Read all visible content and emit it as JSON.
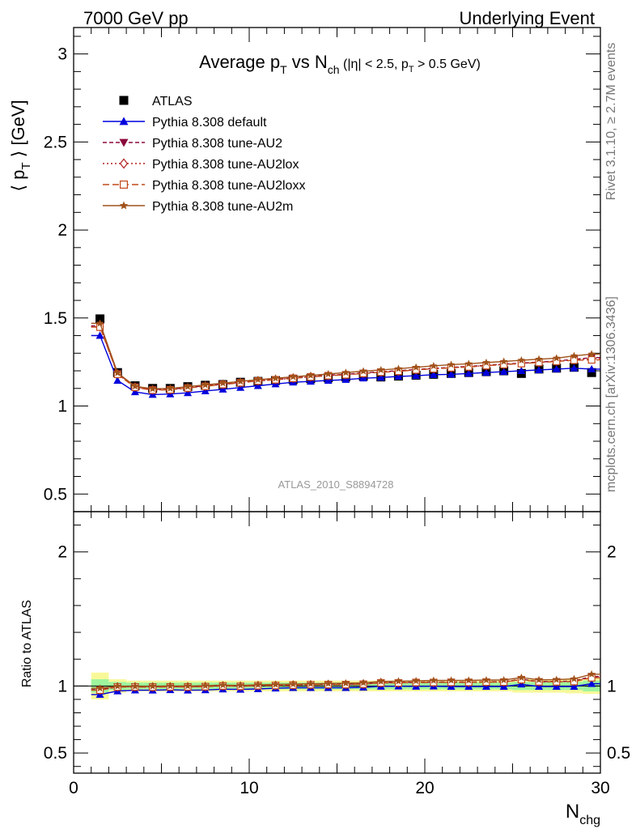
{
  "header": {
    "left": "7000 GeV pp",
    "right": "Underlying Event"
  },
  "side_labels": {
    "rivet": "Rivet 3.1.10, ≥ 2.7M events",
    "mcplots": "mcplots.cern.ch [arXiv:1306.3436]"
  },
  "watermark": "ATLAS_2010_S8894728",
  "colors": {
    "ATLAS": "#000000",
    "default": "#0000dd",
    "AU2": "#8b0a3c",
    "AU2lox": "#b22222",
    "AU2loxx": "#c24a1a",
    "AU2m": "#a0521a",
    "band_inner": "#9ef59e",
    "band_outer": "#f8f89a"
  },
  "chart_data": [
    {
      "type": "line",
      "title": {
        "main": "Average p",
        "main_sub": "T",
        "mid": " vs N",
        "mid_sub": "ch",
        "cond": " (|η| < 2.5, p",
        "cond_sub": "T",
        "cond_end": " > 0.5 GeV)"
      },
      "xlabel": "",
      "ylabel": {
        "pre": "⟨ p",
        "sub": "T",
        "post": " ⟩ [GeV]"
      },
      "xlim": [
        0,
        30
      ],
      "ylim": [
        0.4,
        3.15
      ],
      "yticks": [
        "0.5",
        "1",
        "1.5",
        "2",
        "2.5",
        "3"
      ],
      "yticks_val": [
        0.5,
        1,
        1.5,
        2,
        2.5,
        3
      ],
      "legend_position": "top-left",
      "x": [
        1.5,
        2.5,
        3.5,
        4.5,
        5.5,
        6.5,
        7.5,
        8.5,
        9.5,
        10.5,
        11.5,
        12.5,
        13.5,
        14.5,
        15.5,
        16.5,
        17.5,
        18.5,
        19.5,
        20.5,
        21.5,
        22.5,
        23.5,
        24.5,
        25.5,
        26.5,
        27.5,
        28.5,
        29.5
      ],
      "series": [
        {
          "name": "ATLAS",
          "key": "ATLAS",
          "marker": "square",
          "values": [
            1.495,
            1.19,
            1.115,
            1.1,
            1.1,
            1.11,
            1.118,
            1.122,
            1.135,
            1.14,
            1.145,
            1.15,
            1.155,
            1.16,
            1.165,
            1.17,
            1.165,
            1.17,
            1.175,
            1.18,
            1.185,
            1.19,
            1.195,
            1.2,
            1.185,
            1.21,
            1.215,
            1.22,
            1.19
          ]
        },
        {
          "name": "Pythia 8.308 default",
          "key": "default",
          "marker": "triangle-up",
          "dash": "",
          "values": [
            1.4,
            1.145,
            1.08,
            1.065,
            1.068,
            1.075,
            1.085,
            1.095,
            1.105,
            1.115,
            1.125,
            1.135,
            1.14,
            1.145,
            1.15,
            1.158,
            1.162,
            1.168,
            1.172,
            1.178,
            1.18,
            1.185,
            1.19,
            1.195,
            1.2,
            1.205,
            1.21,
            1.215,
            1.21
          ]
        },
        {
          "name": "Pythia 8.308 tune-AU2",
          "key": "AU2",
          "marker": "triangle-down",
          "dash": "5,3",
          "values": [
            1.455,
            1.185,
            1.11,
            1.095,
            1.095,
            1.105,
            1.115,
            1.125,
            1.135,
            1.145,
            1.152,
            1.16,
            1.168,
            1.175,
            1.18,
            1.188,
            1.195,
            1.2,
            1.208,
            1.214,
            1.22,
            1.225,
            1.232,
            1.238,
            1.244,
            1.25,
            1.256,
            1.265,
            1.275
          ]
        },
        {
          "name": "Pythia 8.308 tune-AU2lox",
          "key": "AU2lox",
          "marker": "diamond-open",
          "dash": "2,3",
          "values": [
            1.45,
            1.182,
            1.108,
            1.092,
            1.093,
            1.103,
            1.113,
            1.123,
            1.133,
            1.143,
            1.15,
            1.158,
            1.166,
            1.173,
            1.178,
            1.186,
            1.193,
            1.198,
            1.206,
            1.212,
            1.218,
            1.223,
            1.23,
            1.236,
            1.242,
            1.248,
            1.254,
            1.262,
            1.268
          ]
        },
        {
          "name": "Pythia 8.308 tune-AU2loxx",
          "key": "AU2loxx",
          "marker": "square-open",
          "dash": "8,4",
          "values": [
            1.448,
            1.18,
            1.106,
            1.09,
            1.092,
            1.102,
            1.112,
            1.122,
            1.132,
            1.142,
            1.149,
            1.157,
            1.165,
            1.172,
            1.177,
            1.185,
            1.192,
            1.197,
            1.205,
            1.211,
            1.217,
            1.222,
            1.229,
            1.235,
            1.241,
            1.247,
            1.253,
            1.26,
            1.262
          ]
        },
        {
          "name": "Pythia 8.308 tune-AU2m",
          "key": "AU2m",
          "marker": "star",
          "dash": "",
          "values": [
            1.47,
            1.188,
            1.112,
            1.098,
            1.1,
            1.11,
            1.12,
            1.13,
            1.14,
            1.15,
            1.158,
            1.166,
            1.174,
            1.182,
            1.19,
            1.198,
            1.205,
            1.212,
            1.22,
            1.228,
            1.235,
            1.24,
            1.247,
            1.253,
            1.26,
            1.266,
            1.272,
            1.285,
            1.295
          ]
        }
      ]
    },
    {
      "type": "line",
      "title": "",
      "xlabel": {
        "main": "N",
        "sub": "chg"
      },
      "ylabel": "Ratio to ATLAS",
      "xlim": [
        0,
        30
      ],
      "ylim": [
        0.35,
        2.3
      ],
      "xticks": [
        "0",
        "10",
        "20",
        "30"
      ],
      "xticks_val": [
        0,
        10,
        20,
        30
      ],
      "yticks": [
        "0.5",
        "1",
        "2"
      ],
      "yticks_val": [
        0.5,
        1,
        2
      ],
      "x": [
        1.5,
        2.5,
        3.5,
        4.5,
        5.5,
        6.5,
        7.5,
        8.5,
        9.5,
        10.5,
        11.5,
        12.5,
        13.5,
        14.5,
        15.5,
        16.5,
        17.5,
        18.5,
        19.5,
        20.5,
        21.5,
        22.5,
        23.5,
        24.5,
        25.5,
        26.5,
        27.5,
        28.5,
        29.5
      ],
      "band_inner": [
        0.05,
        0.03,
        0.025,
        0.025,
        0.025,
        0.025,
        0.025,
        0.025,
        0.025,
        0.025,
        0.025,
        0.025,
        0.025,
        0.025,
        0.025,
        0.025,
        0.025,
        0.025,
        0.025,
        0.025,
        0.025,
        0.025,
        0.025,
        0.025,
        0.03,
        0.03,
        0.03,
        0.03,
        0.04
      ],
      "band_outer": [
        0.1,
        0.05,
        0.04,
        0.04,
        0.04,
        0.04,
        0.04,
        0.04,
        0.04,
        0.04,
        0.04,
        0.04,
        0.04,
        0.04,
        0.04,
        0.04,
        0.04,
        0.04,
        0.04,
        0.04,
        0.04,
        0.04,
        0.04,
        0.04,
        0.05,
        0.05,
        0.05,
        0.055,
        0.06
      ],
      "series": [
        {
          "name": "Pythia 8.308 default",
          "key": "default",
          "marker": "triangle-up",
          "dash": "",
          "values": [
            0.936,
            0.962,
            0.969,
            0.968,
            0.971,
            0.968,
            0.97,
            0.976,
            0.974,
            0.978,
            0.983,
            0.987,
            0.987,
            0.987,
            0.987,
            0.99,
            0.997,
            0.998,
            0.997,
            0.998,
            0.996,
            0.996,
            0.996,
            0.996,
            1.013,
            0.996,
            0.996,
            0.996,
            1.017
          ]
        },
        {
          "name": "Pythia 8.308 tune-AU2",
          "key": "AU2",
          "marker": "triangle-down",
          "dash": "5,3",
          "values": [
            0.973,
            0.996,
            0.996,
            0.995,
            0.995,
            0.995,
            0.997,
            1.003,
            1.0,
            1.004,
            1.006,
            1.009,
            1.011,
            1.013,
            1.013,
            1.015,
            1.026,
            1.026,
            1.028,
            1.029,
            1.03,
            1.029,
            1.031,
            1.032,
            1.05,
            1.033,
            1.034,
            1.037,
            1.071
          ]
        },
        {
          "name": "Pythia 8.308 tune-AU2lox",
          "key": "AU2lox",
          "marker": "diamond-open",
          "dash": "2,3",
          "values": [
            0.97,
            0.993,
            0.994,
            0.993,
            0.994,
            0.994,
            0.996,
            1.001,
            0.998,
            1.003,
            1.004,
            1.007,
            1.009,
            1.011,
            1.011,
            1.014,
            1.024,
            1.024,
            1.026,
            1.027,
            1.028,
            1.027,
            1.029,
            1.03,
            1.048,
            1.031,
            1.032,
            1.034,
            1.066
          ]
        },
        {
          "name": "Pythia 8.308 tune-AU2loxx",
          "key": "AU2loxx",
          "marker": "square-open",
          "dash": "8,4",
          "values": [
            0.969,
            0.992,
            0.992,
            0.991,
            0.993,
            0.993,
            0.995,
            1.0,
            0.997,
            1.002,
            1.003,
            1.006,
            1.009,
            1.01,
            1.01,
            1.013,
            1.023,
            1.023,
            1.026,
            1.026,
            1.027,
            1.027,
            1.029,
            1.029,
            1.047,
            1.031,
            1.031,
            1.033,
            1.061
          ]
        },
        {
          "name": "Pythia 8.308 tune-AU2m",
          "key": "AU2m",
          "marker": "star",
          "dash": "",
          "values": [
            0.983,
            0.998,
            0.997,
            0.998,
            1.0,
            1.0,
            1.002,
            1.007,
            1.004,
            1.009,
            1.011,
            1.014,
            1.016,
            1.019,
            1.021,
            1.024,
            1.034,
            1.036,
            1.038,
            1.041,
            1.042,
            1.042,
            1.044,
            1.044,
            1.063,
            1.046,
            1.047,
            1.053,
            1.088
          ]
        }
      ]
    }
  ]
}
